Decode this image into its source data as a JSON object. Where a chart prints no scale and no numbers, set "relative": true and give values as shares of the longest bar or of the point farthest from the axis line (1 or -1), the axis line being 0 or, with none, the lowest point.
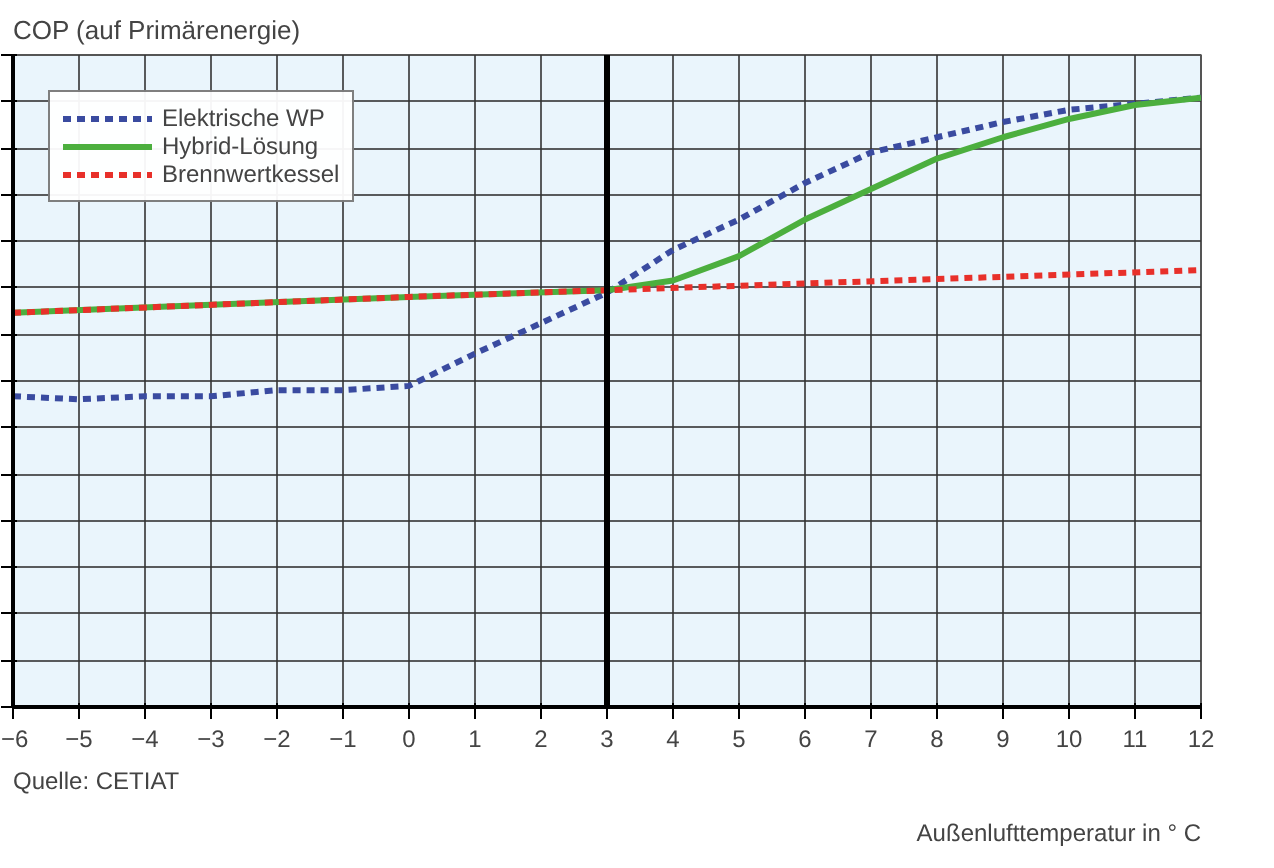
{
  "chart_data": {
    "type": "line",
    "relative": true,
    "ylabel": "COP (auf Primärenergie)",
    "xlabel": "Außenlufttemperatur in ° C",
    "annotations": [
      "Quelle: CETIAT"
    ],
    "xlim": [
      -6,
      12
    ],
    "xticks": [
      -6,
      -5,
      -4,
      -3,
      -2,
      -1,
      0,
      1,
      2,
      3,
      4,
      5,
      6,
      7,
      8,
      9,
      10,
      11,
      12
    ],
    "grid": true,
    "legend": "top left",
    "ref_lines": [
      {
        "axis": "x",
        "value": 3,
        "color": "#000000"
      }
    ],
    "series": [
      {
        "name": "Elektrische WP",
        "color": "#3a4ba0",
        "line_style": "dashed",
        "x": [
          -6,
          -5,
          -4,
          -3,
          -2,
          -1,
          0,
          1,
          2,
          3,
          4,
          5,
          6,
          7,
          8,
          9,
          10,
          11,
          12
        ],
        "values": [
          0.51,
          0.505,
          0.51,
          0.51,
          0.52,
          0.52,
          0.527,
          0.58,
          0.63,
          0.68,
          0.75,
          0.8,
          0.86,
          0.91,
          0.935,
          0.96,
          0.98,
          0.99,
          1
        ]
      },
      {
        "name": "Hybrid-Lösung",
        "color": "#4caf3e",
        "line_style": "solid",
        "x": [
          -6,
          -3,
          0,
          3,
          4,
          5,
          6,
          7,
          8,
          9,
          10,
          11,
          12
        ],
        "values": [
          0.647,
          0.66,
          0.673,
          0.684,
          0.7,
          0.74,
          0.8,
          0.85,
          0.9,
          0.935,
          0.965,
          0.988,
          1
        ]
      },
      {
        "name": "Brennwertkessel",
        "color": "#e8302a",
        "line_style": "dashed",
        "x": [
          -6,
          0,
          3,
          6,
          9,
          12
        ],
        "values": [
          0.647,
          0.673,
          0.684,
          0.695,
          0.706,
          0.717
        ]
      }
    ]
  }
}
